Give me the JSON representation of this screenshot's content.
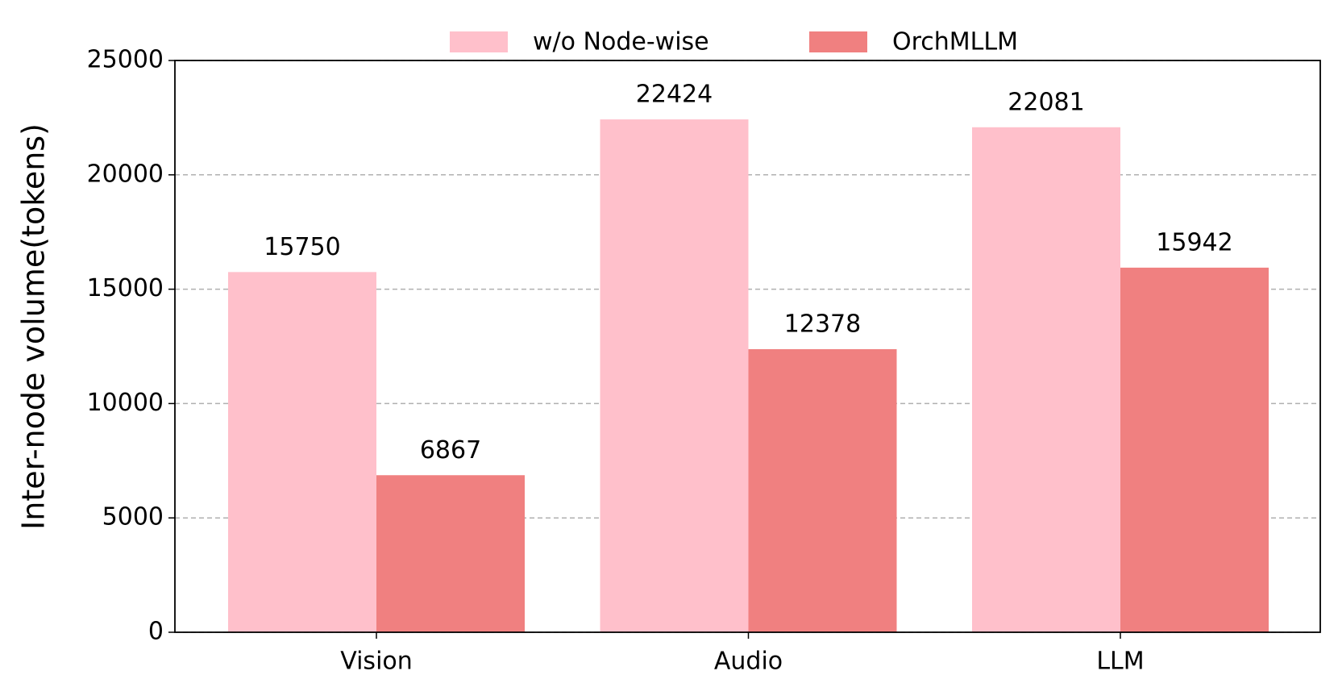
{
  "chart_data": {
    "type": "bar",
    "y_label": "Inter-node volume(tokens)",
    "categories": [
      "Vision",
      "Audio",
      "LLM"
    ],
    "series": [
      {
        "name": "w/o Node-wise",
        "color": "#ffc0cb",
        "values": [
          15750,
          22424,
          22081
        ]
      },
      {
        "name": "OrchMLLM",
        "color": "#f08080",
        "values": [
          6867,
          12378,
          15942
        ]
      }
    ],
    "ylim": [
      0,
      25000
    ],
    "yticks": [
      0,
      5000,
      10000,
      15000,
      20000,
      25000
    ],
    "grid": true,
    "legend": "top"
  }
}
